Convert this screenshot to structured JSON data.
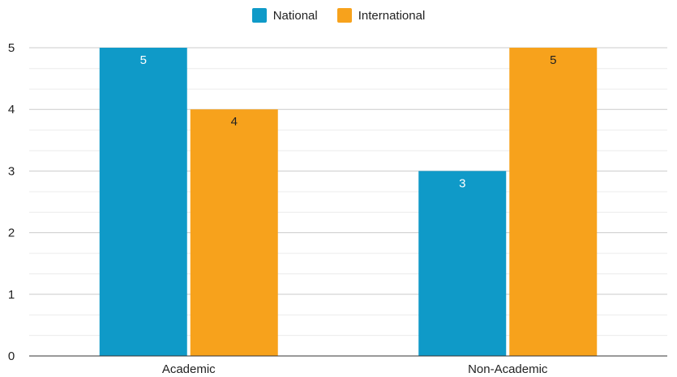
{
  "chart_data": {
    "type": "bar",
    "categories": [
      "Academic",
      "Non-Academic"
    ],
    "series": [
      {
        "name": "National",
        "values": [
          5,
          3
        ],
        "color": "#0f9ac8",
        "label_color": "#ffffff"
      },
      {
        "name": "International",
        "values": [
          4,
          5
        ],
        "color": "#f7a21c",
        "label_color": "#222222"
      }
    ],
    "ylim": [
      0,
      5
    ],
    "yticks": [
      0,
      1,
      2,
      3,
      4,
      5
    ],
    "minor_grid_step": 0.333,
    "grid": true,
    "legend_position": "top-center",
    "data_labels": true,
    "title": "",
    "xlabel": "",
    "ylabel": ""
  }
}
